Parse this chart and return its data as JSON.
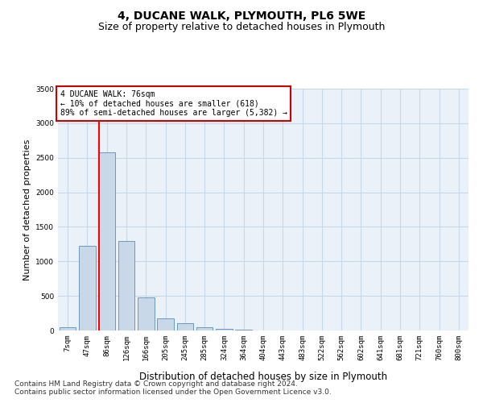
{
  "title1": "4, DUCANE WALK, PLYMOUTH, PL6 5WE",
  "title2": "Size of property relative to detached houses in Plymouth",
  "xlabel": "Distribution of detached houses by size in Plymouth",
  "ylabel": "Number of detached properties",
  "categories": [
    "7sqm",
    "47sqm",
    "86sqm",
    "126sqm",
    "166sqm",
    "205sqm",
    "245sqm",
    "285sqm",
    "324sqm",
    "364sqm",
    "404sqm",
    "443sqm",
    "483sqm",
    "522sqm",
    "562sqm",
    "602sqm",
    "641sqm",
    "681sqm",
    "721sqm",
    "760sqm",
    "800sqm"
  ],
  "values": [
    50,
    1220,
    2580,
    1300,
    480,
    180,
    110,
    50,
    20,
    8,
    4,
    2,
    1,
    0,
    0,
    0,
    0,
    0,
    0,
    0,
    0
  ],
  "bar_color": "#c8d8e8",
  "bar_edgecolor": "#5b8db8",
  "grid_color": "#c5d9ea",
  "background_color": "#eaf1f8",
  "annotation_text": "4 DUCANE WALK: 76sqm\n← 10% of detached houses are smaller (618)\n89% of semi-detached houses are larger (5,382) →",
  "annotation_box_color": "#ffffff",
  "annotation_box_edgecolor": "#cc0000",
  "red_line_x": 1.62,
  "ylim": [
    0,
    3500
  ],
  "yticks": [
    0,
    500,
    1000,
    1500,
    2000,
    2500,
    3000,
    3500
  ],
  "footer1": "Contains HM Land Registry data © Crown copyright and database right 2024.",
  "footer2": "Contains public sector information licensed under the Open Government Licence v3.0.",
  "title1_fontsize": 10,
  "title2_fontsize": 9,
  "tick_fontsize": 6.5,
  "ylabel_fontsize": 8,
  "xlabel_fontsize": 8.5,
  "annotation_fontsize": 7,
  "footer_fontsize": 6.5
}
